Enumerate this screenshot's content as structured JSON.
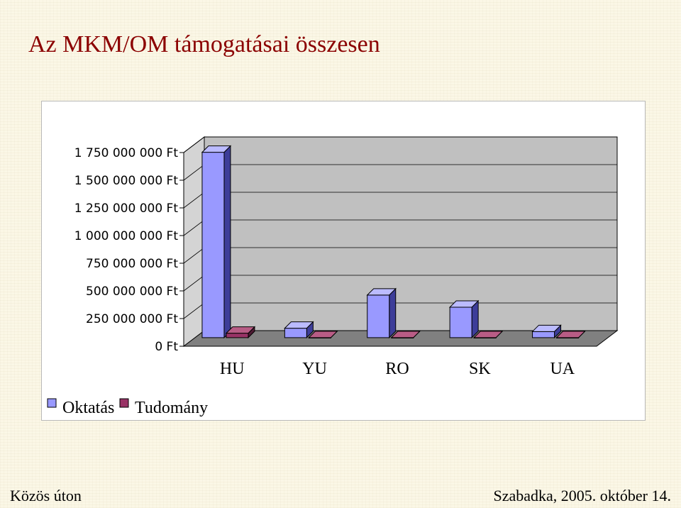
{
  "title": "Az MKM/OM támogatásai összesen",
  "footer": {
    "left": "Közös úton",
    "right": "Szabadka, 2005. október 14."
  },
  "colors": {
    "oktatas_face": "#9999ff",
    "oktatas_side": "#3d3d99",
    "oktatas_top": "#bbbbff",
    "tudomany_face": "#993366",
    "tudomany_side": "#4d1a33",
    "tudomany_top": "#b85c85",
    "wall": "#c0c0c0",
    "floor": "#808080",
    "title": "#8b0000"
  },
  "chart_data": {
    "type": "bar",
    "style": "3d-clustered-column",
    "categories": [
      "HU",
      "YU",
      "RO",
      "SK",
      "UA"
    ],
    "series": [
      {
        "name": "Oktatás",
        "values": [
          1675000000,
          85000000,
          385000000,
          275000000,
          55000000
        ]
      },
      {
        "name": "Tudomány",
        "values": [
          40000000,
          0,
          0,
          0,
          0
        ]
      }
    ],
    "ylim": [
      0,
      1750000000
    ],
    "yticks": [
      "0 Ft",
      "250 000 000 Ft",
      "500 000 000 Ft",
      "750 000 000 Ft",
      "1 000 000 000 Ft",
      "1 250 000 000 Ft",
      "1 500 000 000 Ft",
      "1 750 000 000 Ft"
    ],
    "grid": true,
    "legend_position": "bottom-left"
  }
}
